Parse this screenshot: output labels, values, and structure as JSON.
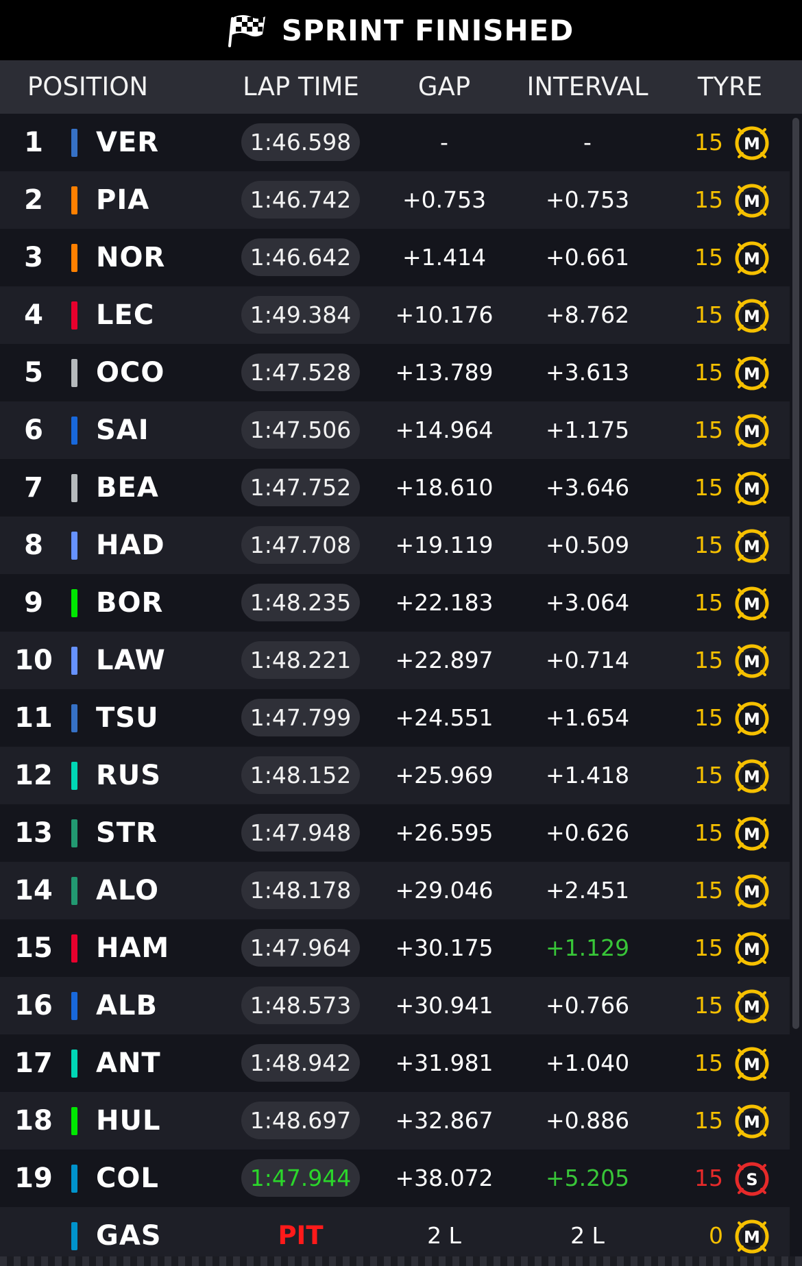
{
  "banner": {
    "title": "SPRINT FINISHED",
    "icon": "checkered-flag-icon"
  },
  "columns": {
    "position": "POSITION",
    "lap_time": "LAP TIME",
    "gap": "GAP",
    "interval": "INTERVAL",
    "tyre": "TYRE"
  },
  "colors": {
    "red_bull": "#3671c6",
    "mclaren": "#ff8000",
    "ferrari": "#e8002d",
    "haas": "#b6babd",
    "williams": "#1868db",
    "racing_bulls": "#6692ff",
    "sauber": "#00e701",
    "mercedes": "#00d7b6",
    "aston_martin": "#229971",
    "alpine": "#0093cc",
    "medium_tyre": "#f6c000",
    "soft_tyre": "#e62a2a",
    "green_highlight": "#2bd62b"
  },
  "rows": [
    {
      "pos": "1",
      "driver": "VER",
      "team_color": "#3671c6",
      "lap": "1:46.598",
      "gap": "-",
      "interval": "-",
      "laps": "15",
      "tyre": "M"
    },
    {
      "pos": "2",
      "driver": "PIA",
      "team_color": "#ff8000",
      "lap": "1:46.742",
      "gap": "+0.753",
      "interval": "+0.753",
      "laps": "15",
      "tyre": "M"
    },
    {
      "pos": "3",
      "driver": "NOR",
      "team_color": "#ff8000",
      "lap": "1:46.642",
      "gap": "+1.414",
      "interval": "+0.661",
      "laps": "15",
      "tyre": "M"
    },
    {
      "pos": "4",
      "driver": "LEC",
      "team_color": "#e8002d",
      "lap": "1:49.384",
      "gap": "+10.176",
      "interval": "+8.762",
      "laps": "15",
      "tyre": "M"
    },
    {
      "pos": "5",
      "driver": "OCO",
      "team_color": "#b6babd",
      "lap": "1:47.528",
      "gap": "+13.789",
      "interval": "+3.613",
      "laps": "15",
      "tyre": "M"
    },
    {
      "pos": "6",
      "driver": "SAI",
      "team_color": "#1868db",
      "lap": "1:47.506",
      "gap": "+14.964",
      "interval": "+1.175",
      "laps": "15",
      "tyre": "M"
    },
    {
      "pos": "7",
      "driver": "BEA",
      "team_color": "#b6babd",
      "lap": "1:47.752",
      "gap": "+18.610",
      "interval": "+3.646",
      "laps": "15",
      "tyre": "M"
    },
    {
      "pos": "8",
      "driver": "HAD",
      "team_color": "#6692ff",
      "lap": "1:47.708",
      "gap": "+19.119",
      "interval": "+0.509",
      "laps": "15",
      "tyre": "M"
    },
    {
      "pos": "9",
      "driver": "BOR",
      "team_color": "#00e701",
      "lap": "1:48.235",
      "gap": "+22.183",
      "interval": "+3.064",
      "laps": "15",
      "tyre": "M"
    },
    {
      "pos": "10",
      "driver": "LAW",
      "team_color": "#6692ff",
      "lap": "1:48.221",
      "gap": "+22.897",
      "interval": "+0.714",
      "laps": "15",
      "tyre": "M"
    },
    {
      "pos": "11",
      "driver": "TSU",
      "team_color": "#3671c6",
      "lap": "1:47.799",
      "gap": "+24.551",
      "interval": "+1.654",
      "laps": "15",
      "tyre": "M"
    },
    {
      "pos": "12",
      "driver": "RUS",
      "team_color": "#00d7b6",
      "lap": "1:48.152",
      "gap": "+25.969",
      "interval": "+1.418",
      "laps": "15",
      "tyre": "M"
    },
    {
      "pos": "13",
      "driver": "STR",
      "team_color": "#229971",
      "lap": "1:47.948",
      "gap": "+26.595",
      "interval": "+0.626",
      "laps": "15",
      "tyre": "M"
    },
    {
      "pos": "14",
      "driver": "ALO",
      "team_color": "#229971",
      "lap": "1:48.178",
      "gap": "+29.046",
      "interval": "+2.451",
      "laps": "15",
      "tyre": "M"
    },
    {
      "pos": "15",
      "driver": "HAM",
      "team_color": "#e8002d",
      "lap": "1:47.964",
      "gap": "+30.175",
      "interval": "+1.129",
      "interval_green": true,
      "laps": "15",
      "tyre": "M"
    },
    {
      "pos": "16",
      "driver": "ALB",
      "team_color": "#1868db",
      "lap": "1:48.573",
      "gap": "+30.941",
      "interval": "+0.766",
      "laps": "15",
      "tyre": "M"
    },
    {
      "pos": "17",
      "driver": "ANT",
      "team_color": "#00d7b6",
      "lap": "1:48.942",
      "gap": "+31.981",
      "interval": "+1.040",
      "laps": "15",
      "tyre": "M"
    },
    {
      "pos": "18",
      "driver": "HUL",
      "team_color": "#00e701",
      "lap": "1:48.697",
      "gap": "+32.867",
      "interval": "+0.886",
      "laps": "15",
      "tyre": "M"
    },
    {
      "pos": "19",
      "driver": "COL",
      "team_color": "#0093cc",
      "lap": "1:47.944",
      "lap_best": true,
      "gap": "+38.072",
      "interval": "+5.205",
      "interval_green": true,
      "laps": "15",
      "laps_red": true,
      "tyre": "S"
    },
    {
      "pos": "",
      "driver": "GAS",
      "team_color": "#0093cc",
      "lap": "PIT",
      "lap_pit": true,
      "gap": "2 L",
      "interval": "2 L",
      "laps": "0",
      "tyre": "M"
    }
  ]
}
